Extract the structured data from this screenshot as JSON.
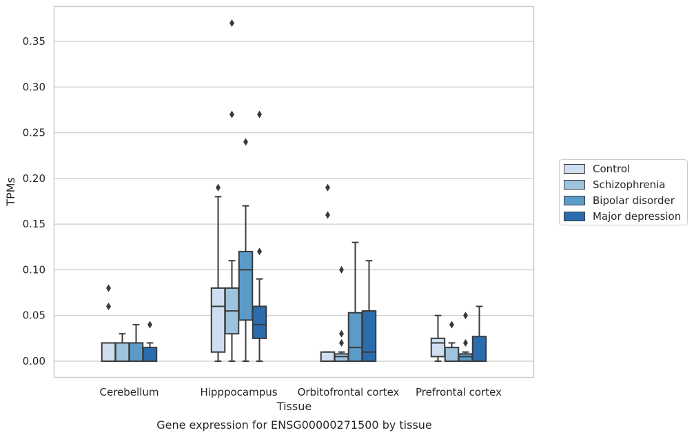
{
  "chart_data": {
    "type": "box",
    "title": "",
    "caption": "Gene expression for ENSG00000271500 by tissue",
    "xlabel": "Tissue",
    "ylabel": "TPMs",
    "ylim": [
      -0.018,
      0.388
    ],
    "yticks": [
      0.0,
      0.05,
      0.1,
      0.15,
      0.2,
      0.25,
      0.3,
      0.35
    ],
    "ytick_labels": [
      "0.00",
      "0.05",
      "0.10",
      "0.15",
      "0.20",
      "0.25",
      "0.30",
      "0.35"
    ],
    "grid": "horizontal",
    "legend_position": "right",
    "categories": [
      "Cerebellum",
      "Hipppocampus",
      "Orbitofrontal cortex",
      "Prefrontal cortex"
    ],
    "series": [
      {
        "name": "Control",
        "color": "#cfdef0",
        "boxes": [
          {
            "whislo": 0.0,
            "q1": 0.0,
            "med": 0.0,
            "q3": 0.02,
            "whishi": 0.02,
            "fliers": [
              0.06,
              0.08
            ]
          },
          {
            "whislo": 0.0,
            "q1": 0.01,
            "med": 0.06,
            "q3": 0.08,
            "whishi": 0.18,
            "fliers": [
              0.19
            ]
          },
          {
            "whislo": 0.0,
            "q1": 0.0,
            "med": 0.0,
            "q3": 0.01,
            "whishi": 0.01,
            "fliers": [
              0.16,
              0.19
            ]
          },
          {
            "whislo": 0.0,
            "q1": 0.005,
            "med": 0.02,
            "q3": 0.025,
            "whishi": 0.05,
            "fliers": []
          }
        ]
      },
      {
        "name": "Schizophrenia",
        "color": "#9dc3dd",
        "boxes": [
          {
            "whislo": 0.0,
            "q1": 0.0,
            "med": 0.0,
            "q3": 0.02,
            "whishi": 0.03,
            "fliers": []
          },
          {
            "whislo": 0.0,
            "q1": 0.03,
            "med": 0.055,
            "q3": 0.08,
            "whishi": 0.11,
            "fliers": [
              0.27,
              0.37
            ]
          },
          {
            "whislo": 0.0,
            "q1": 0.0,
            "med": 0.005,
            "q3": 0.008,
            "whishi": 0.01,
            "fliers": [
              0.02,
              0.03,
              0.1
            ]
          },
          {
            "whislo": 0.0,
            "q1": 0.0,
            "med": 0.0,
            "q3": 0.015,
            "whishi": 0.02,
            "fliers": [
              0.04
            ]
          }
        ]
      },
      {
        "name": "Bipolar disorder",
        "color": "#5b9bc8",
        "boxes": [
          {
            "whislo": 0.0,
            "q1": 0.0,
            "med": 0.0,
            "q3": 0.02,
            "whishi": 0.04,
            "fliers": []
          },
          {
            "whislo": 0.0,
            "q1": 0.045,
            "med": 0.1,
            "q3": 0.12,
            "whishi": 0.17,
            "fliers": [
              0.24
            ]
          },
          {
            "whislo": 0.0,
            "q1": 0.0,
            "med": 0.015,
            "q3": 0.053,
            "whishi": 0.13,
            "fliers": []
          },
          {
            "whislo": 0.0,
            "q1": 0.0,
            "med": 0.005,
            "q3": 0.008,
            "whishi": 0.01,
            "fliers": [
              0.02,
              0.05
            ]
          }
        ]
      },
      {
        "name": "Major depression",
        "color": "#2a6cae",
        "boxes": [
          {
            "whislo": 0.0,
            "q1": 0.0,
            "med": 0.0,
            "q3": 0.015,
            "whishi": 0.02,
            "fliers": [
              0.04
            ]
          },
          {
            "whislo": 0.0,
            "q1": 0.025,
            "med": 0.04,
            "q3": 0.06,
            "whishi": 0.09,
            "fliers": [
              0.12,
              0.27
            ]
          },
          {
            "whislo": 0.0,
            "q1": 0.0,
            "med": 0.01,
            "q3": 0.055,
            "whishi": 0.11,
            "fliers": []
          },
          {
            "whislo": 0.0,
            "q1": 0.0,
            "med": 0.0,
            "q3": 0.027,
            "whishi": 0.06,
            "fliers": []
          }
        ]
      }
    ]
  }
}
